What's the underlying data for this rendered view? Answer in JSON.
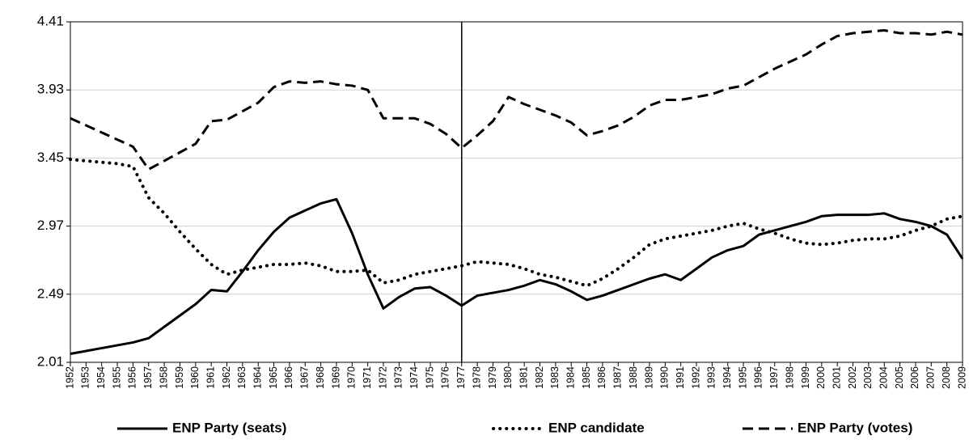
{
  "chart_data": {
    "type": "line",
    "categories": [
      "1952",
      "1953",
      "1954",
      "1955",
      "1956",
      "1957",
      "1958",
      "1959",
      "1960",
      "1961",
      "1962",
      "1963",
      "1964",
      "1965",
      "1966",
      "1967",
      "1968",
      "1969",
      "1970",
      "1971",
      "1972",
      "1973",
      "1974",
      "1975",
      "1976",
      "1977",
      "1978",
      "1979",
      "1980",
      "1981",
      "1982",
      "1983",
      "1984",
      "1985",
      "1986",
      "1987",
      "1988",
      "1989",
      "1990",
      "1991",
      "1992",
      "1993",
      "1994",
      "1995",
      "1996",
      "1997",
      "1998",
      "1999",
      "2000",
      "2001",
      "2002",
      "2003",
      "2004",
      "2005",
      "2006",
      "2007",
      "2008",
      "2009"
    ],
    "series": [
      {
        "name": "ENP Party (seats)",
        "color": "#000000",
        "dash": "solid",
        "values": [
          2.07,
          2.09,
          2.11,
          2.13,
          2.15,
          2.18,
          2.26,
          2.34,
          2.42,
          2.52,
          2.51,
          2.65,
          2.8,
          2.93,
          3.03,
          3.08,
          3.13,
          3.16,
          2.92,
          2.63,
          2.39,
          2.47,
          2.53,
          2.54,
          2.48,
          2.41,
          2.48,
          2.5,
          2.52,
          2.55,
          2.59,
          2.56,
          2.51,
          2.45,
          2.48,
          2.52,
          2.56,
          2.6,
          2.63,
          2.59,
          2.67,
          2.75,
          2.8,
          2.83,
          2.91,
          2.94,
          2.97,
          3.0,
          3.04,
          3.05,
          3.05,
          3.05,
          3.06,
          3.02,
          3.0,
          2.97,
          2.91,
          2.74
        ]
      },
      {
        "name": "ENP candidate",
        "color": "#000000",
        "dash": "dotted",
        "values": [
          3.44,
          3.43,
          3.42,
          3.41,
          3.39,
          3.17,
          3.06,
          2.93,
          2.81,
          2.7,
          2.63,
          2.66,
          2.68,
          2.7,
          2.7,
          2.71,
          2.69,
          2.65,
          2.65,
          2.66,
          2.57,
          2.59,
          2.63,
          2.65,
          2.67,
          2.69,
          2.72,
          2.71,
          2.7,
          2.67,
          2.63,
          2.61,
          2.58,
          2.55,
          2.6,
          2.67,
          2.75,
          2.84,
          2.88,
          2.9,
          2.92,
          2.94,
          2.97,
          2.99,
          2.95,
          2.92,
          2.88,
          2.85,
          2.84,
          2.85,
          2.87,
          2.88,
          2.88,
          2.9,
          2.94,
          2.97,
          3.02,
          3.04
        ]
      },
      {
        "name": "ENP Party (votes)",
        "color": "#000000",
        "dash": "dashed",
        "values": [
          3.73,
          3.68,
          3.63,
          3.58,
          3.53,
          3.37,
          3.43,
          3.49,
          3.55,
          3.71,
          3.72,
          3.78,
          3.84,
          3.95,
          3.99,
          3.98,
          3.99,
          3.97,
          3.96,
          3.93,
          3.73,
          3.73,
          3.73,
          3.69,
          3.62,
          3.52,
          3.61,
          3.71,
          3.88,
          3.83,
          3.79,
          3.75,
          3.7,
          3.61,
          3.64,
          3.68,
          3.74,
          3.82,
          3.86,
          3.86,
          3.88,
          3.9,
          3.94,
          3.96,
          4.02,
          4.08,
          4.13,
          4.18,
          4.25,
          4.31,
          4.33,
          4.34,
          4.35,
          4.33,
          4.33,
          4.32,
          4.34,
          4.32
        ]
      }
    ],
    "ylim": [
      2.01,
      4.41
    ],
    "yticks": [
      2.01,
      2.49,
      2.97,
      3.45,
      3.93,
      4.41
    ],
    "grid": true,
    "vline": "1977",
    "legend": "bottom"
  }
}
